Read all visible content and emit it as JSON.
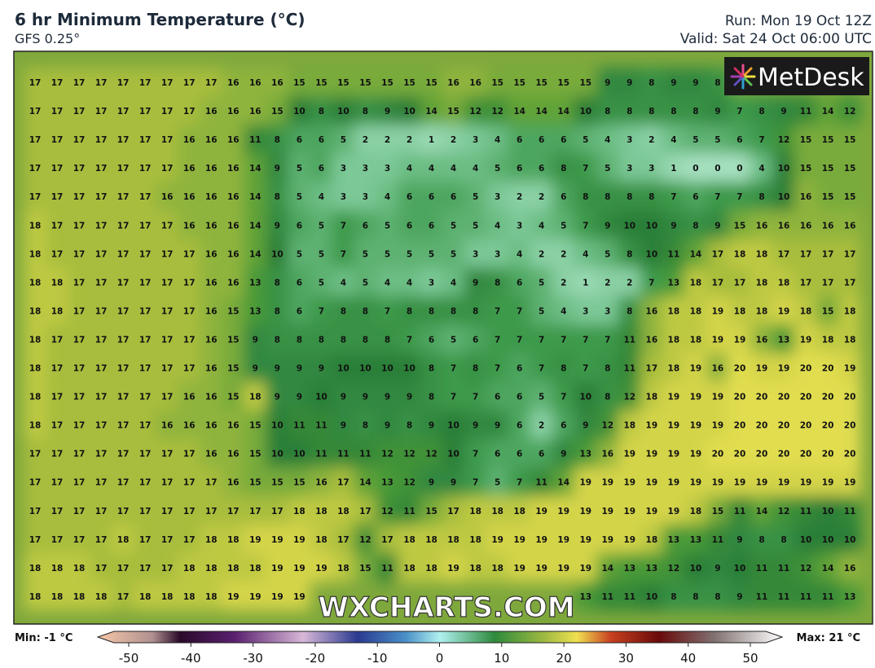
{
  "header": {
    "title": "6 hr Minimum Temperature (°C)",
    "subtitle": "GFS 0.25°",
    "run": "Run: Mon 19 Oct 12Z",
    "valid": "Valid: Sat 24 Oct 06:00 UTC"
  },
  "logo": "MetDesk",
  "watermark": "WXCHARTS.COM",
  "grid": {
    "rows": [
      [
        17,
        17,
        17,
        17,
        17,
        17,
        17,
        17,
        17,
        16,
        16,
        16,
        15,
        15,
        15,
        15,
        15,
        15,
        15,
        16,
        16,
        15,
        15,
        15,
        15,
        15,
        9,
        9,
        8,
        9,
        9,
        8,
        null,
        null,
        null,
        null,
        null,
        null
      ],
      [
        17,
        17,
        17,
        17,
        17,
        17,
        17,
        17,
        16,
        16,
        16,
        15,
        10,
        8,
        10,
        8,
        9,
        10,
        14,
        15,
        12,
        12,
        14,
        14,
        14,
        10,
        8,
        8,
        8,
        8,
        8,
        9,
        7,
        8,
        9,
        11,
        14,
        12
      ],
      [
        17,
        17,
        17,
        17,
        17,
        17,
        17,
        16,
        16,
        16,
        11,
        8,
        6,
        6,
        5,
        2,
        2,
        2,
        1,
        2,
        3,
        4,
        6,
        6,
        6,
        5,
        4,
        3,
        2,
        4,
        5,
        5,
        6,
        7,
        12,
        15,
        15,
        15
      ],
      [
        17,
        17,
        17,
        17,
        17,
        17,
        17,
        16,
        16,
        16,
        14,
        9,
        5,
        6,
        3,
        3,
        3,
        4,
        4,
        4,
        4,
        5,
        6,
        6,
        8,
        7,
        5,
        3,
        3,
        1,
        0,
        0,
        0,
        4,
        10,
        15,
        15,
        15
      ],
      [
        17,
        17,
        17,
        17,
        17,
        17,
        16,
        16,
        16,
        16,
        14,
        8,
        5,
        4,
        3,
        3,
        4,
        6,
        6,
        6,
        5,
        3,
        2,
        2,
        6,
        8,
        8,
        8,
        8,
        7,
        6,
        7,
        7,
        8,
        10,
        16,
        15,
        15
      ],
      [
        18,
        17,
        17,
        17,
        17,
        17,
        17,
        16,
        16,
        16,
        14,
        9,
        6,
        5,
        7,
        6,
        5,
        6,
        6,
        5,
        5,
        4,
        3,
        4,
        5,
        7,
        9,
        10,
        10,
        9,
        8,
        9,
        15,
        16,
        16,
        16,
        16,
        16
      ],
      [
        18,
        17,
        17,
        17,
        17,
        17,
        17,
        17,
        16,
        16,
        14,
        10,
        5,
        5,
        7,
        5,
        5,
        5,
        5,
        5,
        3,
        3,
        4,
        2,
        2,
        4,
        5,
        8,
        10,
        11,
        14,
        17,
        18,
        18,
        17,
        17,
        17,
        17
      ],
      [
        18,
        18,
        17,
        17,
        17,
        17,
        17,
        17,
        16,
        16,
        13,
        8,
        6,
        5,
        4,
        5,
        4,
        4,
        3,
        4,
        9,
        8,
        6,
        5,
        2,
        1,
        2,
        2,
        7,
        13,
        18,
        17,
        17,
        18,
        18,
        17,
        17,
        17
      ],
      [
        18,
        18,
        17,
        17,
        17,
        17,
        17,
        17,
        16,
        15,
        13,
        8,
        6,
        7,
        8,
        8,
        7,
        8,
        8,
        8,
        8,
        7,
        7,
        5,
        4,
        3,
        3,
        8,
        16,
        18,
        18,
        19,
        18,
        18,
        19,
        18,
        15,
        18
      ],
      [
        18,
        17,
        17,
        17,
        17,
        17,
        17,
        17,
        16,
        15,
        9,
        8,
        8,
        8,
        8,
        8,
        8,
        7,
        6,
        5,
        6,
        7,
        7,
        7,
        7,
        7,
        7,
        11,
        16,
        18,
        18,
        19,
        19,
        16,
        13,
        19,
        18,
        18
      ],
      [
        18,
        17,
        17,
        17,
        17,
        17,
        17,
        17,
        16,
        15,
        9,
        9,
        9,
        9,
        10,
        10,
        10,
        10,
        8,
        7,
        8,
        7,
        6,
        7,
        8,
        7,
        8,
        11,
        17,
        18,
        19,
        16,
        20,
        19,
        19,
        20,
        20,
        19
      ],
      [
        18,
        17,
        17,
        17,
        17,
        17,
        17,
        16,
        16,
        15,
        18,
        9,
        9,
        10,
        9,
        9,
        9,
        9,
        8,
        7,
        7,
        6,
        6,
        5,
        7,
        10,
        8,
        12,
        18,
        19,
        19,
        19,
        20,
        20,
        20,
        20,
        20,
        20
      ],
      [
        18,
        17,
        17,
        17,
        17,
        17,
        16,
        16,
        16,
        16,
        15,
        10,
        11,
        11,
        9,
        8,
        9,
        8,
        9,
        10,
        9,
        9,
        6,
        2,
        6,
        9,
        12,
        18,
        19,
        19,
        19,
        19,
        20,
        20,
        20,
        20,
        20,
        20
      ],
      [
        17,
        17,
        17,
        17,
        17,
        17,
        17,
        17,
        16,
        16,
        15,
        10,
        10,
        11,
        11,
        11,
        12,
        12,
        12,
        10,
        7,
        6,
        6,
        6,
        9,
        13,
        16,
        19,
        19,
        19,
        19,
        20,
        20,
        20,
        20,
        20,
        20,
        20
      ],
      [
        17,
        17,
        17,
        17,
        17,
        17,
        17,
        17,
        17,
        16,
        15,
        15,
        15,
        16,
        17,
        14,
        13,
        12,
        9,
        9,
        7,
        5,
        7,
        11,
        14,
        19,
        19,
        19,
        19,
        19,
        19,
        19,
        19,
        19,
        19,
        19,
        19,
        19
      ],
      [
        17,
        17,
        17,
        17,
        17,
        17,
        17,
        17,
        17,
        17,
        17,
        17,
        18,
        18,
        18,
        17,
        12,
        11,
        15,
        17,
        18,
        18,
        18,
        19,
        19,
        19,
        19,
        19,
        19,
        19,
        18,
        15,
        11,
        14,
        12,
        11,
        10,
        11
      ],
      [
        17,
        17,
        17,
        17,
        18,
        17,
        17,
        17,
        18,
        18,
        19,
        19,
        19,
        18,
        17,
        12,
        17,
        18,
        18,
        18,
        18,
        19,
        19,
        19,
        19,
        19,
        19,
        19,
        18,
        13,
        13,
        11,
        9,
        8,
        8,
        10,
        10,
        10
      ],
      [
        18,
        18,
        18,
        17,
        17,
        17,
        17,
        18,
        18,
        18,
        18,
        19,
        19,
        19,
        18,
        15,
        11,
        18,
        18,
        19,
        18,
        18,
        19,
        19,
        19,
        19,
        14,
        13,
        13,
        12,
        10,
        9,
        10,
        11,
        11,
        12,
        14,
        16
      ],
      [
        18,
        18,
        18,
        18,
        17,
        18,
        18,
        18,
        18,
        19,
        19,
        19,
        19,
        null,
        null,
        null,
        null,
        null,
        null,
        null,
        null,
        null,
        null,
        null,
        null,
        13,
        11,
        11,
        10,
        8,
        8,
        8,
        9,
        11,
        11,
        11,
        11,
        13
      ]
    ]
  },
  "colorbar": {
    "min_label": "Min: -1 °C",
    "max_label": "Max: 21 °C",
    "ticks": [
      -50,
      -40,
      -30,
      -20,
      -10,
      0,
      10,
      20,
      30,
      40,
      50
    ]
  }
}
